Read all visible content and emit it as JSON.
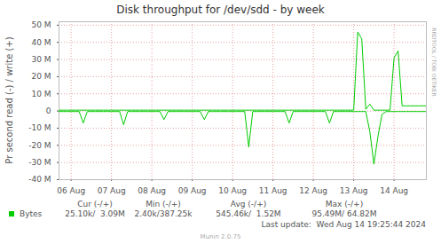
{
  "chart_data": {
    "type": "line",
    "title": "Disk throughput for /dev/sdd - by week",
    "y_label": "Pr second read (-) / write (+)",
    "watermark": "RRDTOOL / TOBI OETIKER",
    "x": [
      5.7,
      5.8,
      5.9,
      6.0,
      6.1,
      6.2,
      6.3,
      6.4,
      6.5,
      6.6,
      6.7,
      6.8,
      6.9,
      7.0,
      7.1,
      7.2,
      7.3,
      7.4,
      7.5,
      7.6,
      7.7,
      7.8,
      7.9,
      8.0,
      8.1,
      8.2,
      8.3,
      8.4,
      8.5,
      8.6,
      8.7,
      8.8,
      8.9,
      9.0,
      9.1,
      9.2,
      9.3,
      9.4,
      9.5,
      9.6,
      9.7,
      9.8,
      9.9,
      10.0,
      10.1,
      10.2,
      10.3,
      10.4,
      10.5,
      10.6,
      10.7,
      10.8,
      10.9,
      11.0,
      11.1,
      11.2,
      11.3,
      11.4,
      11.5,
      11.6,
      11.7,
      11.8,
      11.9,
      12.0,
      12.1,
      12.2,
      12.3,
      12.4,
      12.5,
      12.6,
      12.7,
      12.8,
      12.9,
      13.0,
      13.1,
      13.2,
      13.3,
      13.4,
      13.5,
      13.6,
      13.7,
      13.8,
      13.9,
      14.0,
      14.1,
      14.2,
      14.3,
      14.4,
      14.5,
      14.6,
      14.7,
      14.8
    ],
    "series": [
      {
        "name": "Bytes",
        "color": "#00cc00",
        "values": [
          0.5,
          0.5,
          0.5,
          0.5,
          0.5,
          0.5,
          0.5,
          0.5,
          0.5,
          0.5,
          0.5,
          0.5,
          0.5,
          0.5,
          0.5,
          0.5,
          0.5,
          0.5,
          0.5,
          0.5,
          0.5,
          0.5,
          0.5,
          0.5,
          0.5,
          0.5,
          0.5,
          0.5,
          0.5,
          0.5,
          0.5,
          0.5,
          0.5,
          0.5,
          0.5,
          0.5,
          0.5,
          0.5,
          0.5,
          0.5,
          0.5,
          0.5,
          0.5,
          0.5,
          0.5,
          0.5,
          0.5,
          0.5,
          0.5,
          0.5,
          0.5,
          0.5,
          0.5,
          0.5,
          0.5,
          0.5,
          0.5,
          0.5,
          0.5,
          0.5,
          0.5,
          0.5,
          0.5,
          0.5,
          0.5,
          0.5,
          0.5,
          0.5,
          0.5,
          0.5,
          0.5,
          0.5,
          0.5,
          0.5,
          46,
          42,
          1,
          4,
          0.5,
          0.5,
          0.5,
          0.5,
          0.5,
          31,
          35,
          3,
          3,
          3,
          3,
          3,
          3,
          3
        ]
      },
      {
        "color": "#00cc00",
        "values": [
          -0.3,
          -0.3,
          -0.3,
          -0.3,
          -0.3,
          -0.3,
          -7,
          -0.3,
          -0.3,
          -0.3,
          -0.3,
          -0.3,
          -0.3,
          -0.3,
          -0.3,
          -0.3,
          -8,
          -0.3,
          -0.3,
          -0.3,
          -0.3,
          -0.3,
          -0.3,
          -0.3,
          -0.3,
          -0.3,
          -5,
          -0.3,
          -0.3,
          -0.3,
          -0.3,
          -0.3,
          -0.3,
          -0.3,
          -0.3,
          -0.3,
          -5,
          -0.3,
          -0.3,
          -0.3,
          -0.3,
          -0.3,
          -0.3,
          -0.3,
          -0.3,
          -0.3,
          -0.3,
          -21,
          -0.3,
          -0.3,
          -0.3,
          -0.3,
          -0.3,
          -0.3,
          -0.3,
          -0.3,
          -0.3,
          -7,
          -0.3,
          -0.3,
          -0.3,
          -0.3,
          -0.3,
          -0.3,
          -0.3,
          -0.3,
          -0.3,
          -7,
          -0.3,
          -0.3,
          -0.3,
          -0.3,
          -0.3,
          -0.3,
          -0.3,
          -0.3,
          -0.3,
          -12,
          -31,
          -15,
          -2,
          -0.3,
          -0.3,
          -0.3,
          -0.3,
          -0.3,
          -0.3,
          -0.3,
          -0.3,
          -0.3,
          -0.3,
          -0.3
        ]
      }
    ],
    "xlim": [
      5.7,
      14.8
    ],
    "xticks": [
      {
        "value": 6,
        "label": "06 Aug"
      },
      {
        "value": 7,
        "label": "07 Aug"
      },
      {
        "value": 8,
        "label": "08 Aug"
      },
      {
        "value": 9,
        "label": "09 Aug"
      },
      {
        "value": 10,
        "label": "10 Aug"
      },
      {
        "value": 11,
        "label": "11 Aug"
      },
      {
        "value": 12,
        "label": "12 Aug"
      },
      {
        "value": 13,
        "label": "13 Aug"
      },
      {
        "value": 14,
        "label": "14 Aug"
      }
    ],
    "ylim": [
      -40,
      52
    ],
    "yticks": [
      {
        "value": -40,
        "label": "-40 M"
      },
      {
        "value": -30,
        "label": "-30 M"
      },
      {
        "value": -20,
        "label": "-20 M"
      },
      {
        "value": -10,
        "label": "-10 M"
      },
      0,
      {
        "value": 10,
        "label": "10 M"
      },
      {
        "value": 20,
        "label": "20 M"
      },
      {
        "value": 30,
        "label": "30 M"
      },
      {
        "value": 40,
        "label": "40 M"
      },
      {
        "value": 50,
        "label": "50 M"
      }
    ],
    "grid": true,
    "legend": "bottom",
    "summary": {
      "columns": [
        "Cur (-/+)",
        "Min (-/+)",
        "Avg (-/+)",
        "Max (-/+)"
      ],
      "cells": [
        "25.10k/  3.09M",
        "2.40k/387.25k",
        "545.46k/  1.52M",
        "95.49M/ 64.82M"
      ]
    },
    "last_update": "Last update:  Wed Aug 14 19:25:44 2024",
    "footer": "Munin 2.0.75"
  }
}
